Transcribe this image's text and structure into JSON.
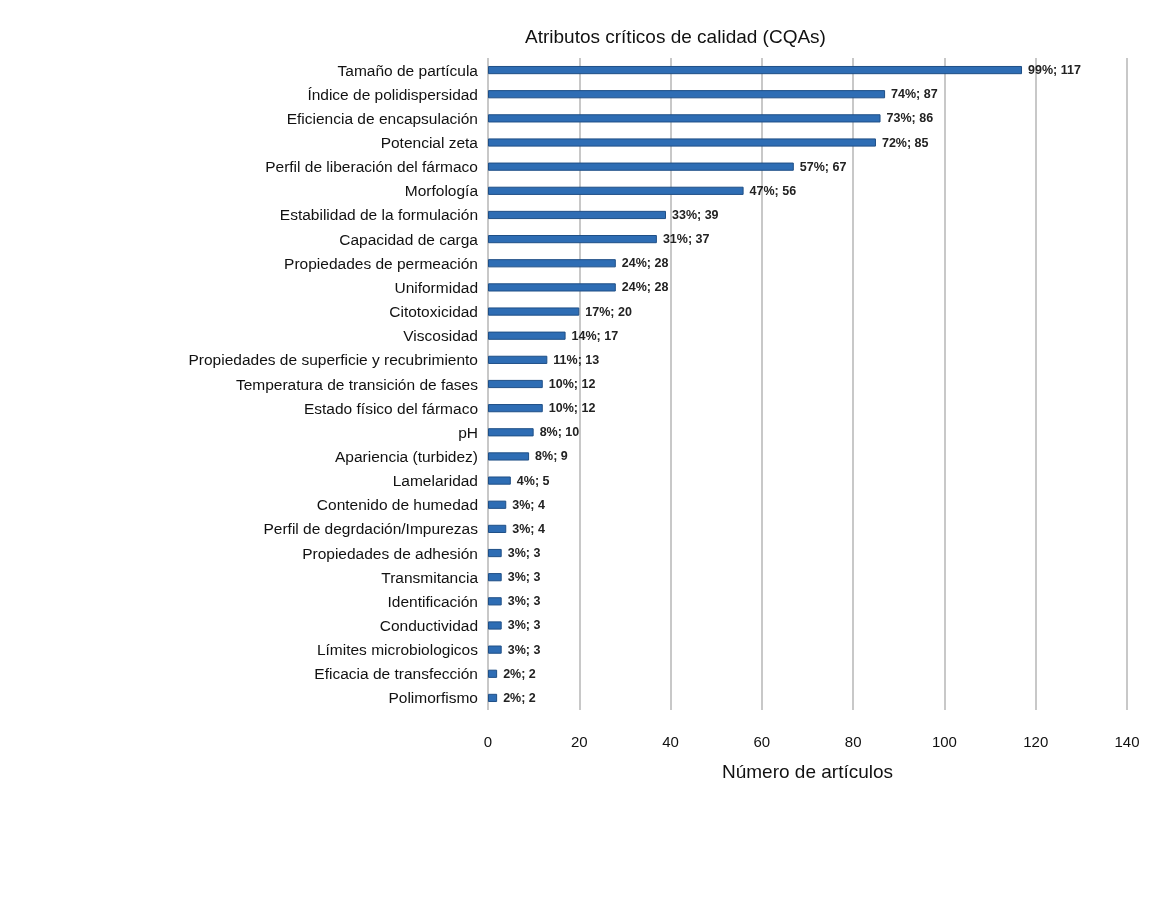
{
  "chart_data": {
    "type": "bar",
    "orientation": "horizontal",
    "title": "Atributos críticos de calidad (CQAs)",
    "xlabel": "Número de artículos",
    "categories": [
      "Tamaño de partícula",
      "Índice de polidispersidad",
      "Eficiencia de encapsulación",
      "Potencial zeta",
      "Perfil de liberación del fármaco",
      "Morfología",
      "Estabilidad de la formulación",
      "Capacidad de carga",
      "Propiedades de permeación",
      "Uniformidad",
      "Citotoxicidad",
      "Viscosidad",
      "Propiedades de superficie y recubrimiento",
      "Temperatura de transición de fases",
      "Estado físico del fármaco",
      "pH",
      "Apariencia (turbidez)",
      "Lamelaridad",
      "Contenido de humedad",
      "Perfil de degrdación/Impurezas",
      "Propiedades de adhesión",
      "Transmitancia",
      "Identificación",
      "Conductividad",
      "Límites microbiologicos",
      "Eficacia de transfección",
      "Polimorfismo"
    ],
    "values": [
      117,
      87,
      86,
      85,
      67,
      56,
      39,
      37,
      28,
      28,
      20,
      17,
      13,
      12,
      12,
      10,
      9,
      5,
      4,
      4,
      3,
      3,
      3,
      3,
      3,
      2,
      2
    ],
    "value_labels": [
      "99%; 117",
      "74%; 87",
      "73%; 86",
      "72%; 85",
      "57%; 67",
      "47%; 56",
      "33%; 39",
      "31%; 37",
      "24%; 28",
      "24%; 28",
      "17%; 20",
      "14%; 17",
      "11%; 13",
      "10%; 12",
      "10%; 12",
      "8%; 10",
      "8%; 9",
      "4%; 5",
      "3%; 4",
      "3%; 4",
      "3%; 3",
      "3%; 3",
      "3%; 3",
      "3%; 3",
      "3%; 3",
      "2%; 2",
      "2%; 2"
    ],
    "color": "#2e6db4",
    "xlim": [
      0,
      140
    ],
    "xticks": [
      0,
      20,
      40,
      60,
      80,
      100,
      120,
      140
    ],
    "grid": "x"
  }
}
